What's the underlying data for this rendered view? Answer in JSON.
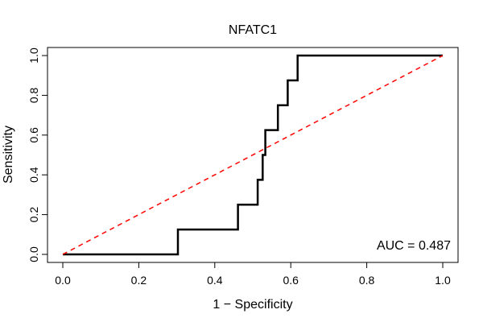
{
  "chart_data": {
    "type": "line",
    "title": "NFATC1",
    "xlabel": "1 − Specificity",
    "ylabel": "Sensitivity",
    "xlim": [
      0,
      1
    ],
    "ylim": [
      0,
      1
    ],
    "xticks": [
      0.0,
      0.2,
      0.4,
      0.6,
      0.8,
      1.0
    ],
    "yticks": [
      0.0,
      0.2,
      0.4,
      0.6,
      0.8,
      1.0
    ],
    "tick_labels": [
      "0.0",
      "0.2",
      "0.4",
      "0.6",
      "0.8",
      "1.0"
    ],
    "grid": false,
    "series": [
      {
        "style": "step",
        "color": "#000000",
        "x": [
          0.0,
          0.303,
          0.303,
          0.461,
          0.461,
          0.513,
          0.513,
          0.526,
          0.526,
          0.533,
          0.533,
          0.566,
          0.566,
          0.592,
          0.592,
          0.618,
          0.618,
          1.0
        ],
        "y": [
          0.0,
          0.0,
          0.125,
          0.125,
          0.25,
          0.25,
          0.375,
          0.375,
          0.5,
          0.5,
          0.625,
          0.625,
          0.75,
          0.75,
          0.875,
          0.875,
          1.0,
          1.0
        ]
      },
      {
        "style": "dashed",
        "color": "#ff0000",
        "x": [
          0,
          1
        ],
        "y": [
          0,
          1
        ]
      }
    ],
    "annotation": "AUC = 0.487"
  }
}
